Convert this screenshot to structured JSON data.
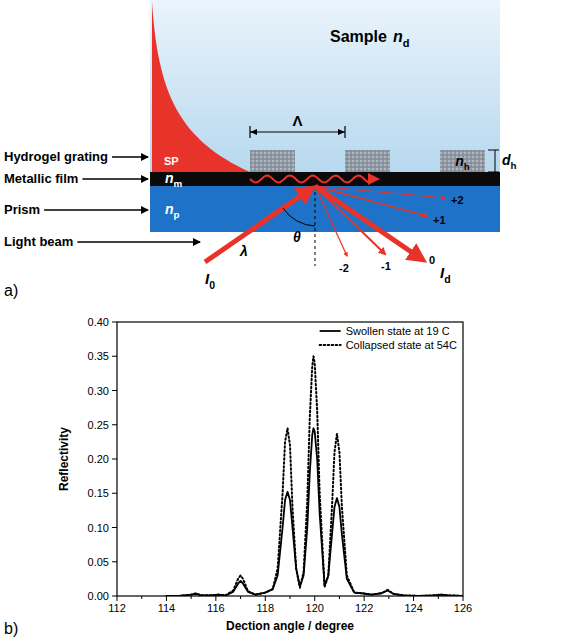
{
  "panel_labels": [
    "a)",
    "b)"
  ],
  "diagram": {
    "sample": {
      "text": "Sample",
      "symbol": "n",
      "sub": "d"
    },
    "layer_labels": [
      "Hydrogel grating",
      "Metallic film",
      "Prism",
      "Light beam"
    ],
    "surface_plasmon": "SP",
    "period": "Λ",
    "thickness": {
      "symbol": "d",
      "sub": "h"
    },
    "hydrogel_index": {
      "symbol": "n",
      "sub": "h"
    },
    "metal_index": {
      "symbol": "n",
      "sub": "m"
    },
    "prism_index": {
      "symbol": "n",
      "sub": "p"
    },
    "wavelength": "λ",
    "angle": "θ",
    "incident": {
      "symbol": "I",
      "sub": "0"
    },
    "diffracted": {
      "symbol": "I",
      "sub": "d"
    },
    "orders": [
      "+2",
      "+1",
      "0",
      "-1",
      "-2"
    ]
  },
  "chart_data": {
    "type": "line",
    "x_label": "Dection angle / degree",
    "y_label": "Reflectivity",
    "x": [
      114,
      114.5,
      115,
      115.2,
      115.4,
      115.8,
      116.1,
      116.4,
      116.7,
      116.9,
      117,
      117.1,
      117.3,
      117.6,
      118,
      118.3,
      118.5,
      118.7,
      118.8,
      118.9,
      119.0,
      119.1,
      119.25,
      119.4,
      119.55,
      119.7,
      119.8,
      119.9,
      119.95,
      120.0,
      120.1,
      120.2,
      120.4,
      120.55,
      120.7,
      120.8,
      120.9,
      121.0,
      121.1,
      121.3,
      121.6,
      121.9,
      122.3,
      122.7,
      122.95,
      123.2,
      123.6,
      124.2,
      124.8,
      125.1,
      125.4,
      126
    ],
    "series": [
      {
        "name": "Swollen state at 19 C",
        "color": "#000000",
        "line_style": "solid",
        "values": [
          0,
          0,
          0.002,
          0.003,
          0.001,
          0.001,
          0.002,
          0.001,
          0.006,
          0.018,
          0.022,
          0.018,
          0.006,
          0.002,
          0.005,
          0.01,
          0.03,
          0.1,
          0.14,
          0.152,
          0.14,
          0.1,
          0.04,
          0.014,
          0.03,
          0.1,
          0.18,
          0.235,
          0.245,
          0.24,
          0.2,
          0.12,
          0.015,
          0.03,
          0.09,
          0.13,
          0.143,
          0.13,
          0.09,
          0.025,
          0.005,
          0.004,
          0.002,
          0.004,
          0.008,
          0.003,
          0.001,
          0,
          0.001,
          0.002,
          0.001,
          0
        ]
      },
      {
        "name": "Collapsed state at 54C",
        "color": "#000000",
        "line_style": "dotted",
        "values": [
          0,
          0,
          0.002,
          0.004,
          0.001,
          0.001,
          0.002,
          0.001,
          0.008,
          0.025,
          0.03,
          0.025,
          0.007,
          0.002,
          0.005,
          0.01,
          0.04,
          0.15,
          0.225,
          0.245,
          0.22,
          0.13,
          0.04,
          0.012,
          0.035,
          0.14,
          0.26,
          0.335,
          0.35,
          0.34,
          0.27,
          0.15,
          0.013,
          0.03,
          0.13,
          0.21,
          0.237,
          0.21,
          0.13,
          0.03,
          0.005,
          0.004,
          0.002,
          0.004,
          0.009,
          0.003,
          0.001,
          0,
          0.001,
          0.002,
          0.001,
          0
        ]
      }
    ],
    "xlim": [
      112,
      126
    ],
    "xticks": [
      112,
      114,
      116,
      118,
      120,
      122,
      124,
      126
    ],
    "ylim": [
      0,
      0.4
    ],
    "yticks": [
      {
        "value": 0,
        "label": "0.00"
      },
      {
        "value": 0.05,
        "label": "0.05"
      },
      {
        "value": 0.1,
        "label": "0.10"
      },
      {
        "value": 0.15,
        "label": "0.15"
      },
      {
        "value": 0.2,
        "label": "0.20"
      },
      {
        "value": 0.25,
        "label": "0.25"
      },
      {
        "value": 0.3,
        "label": "0.30"
      },
      {
        "value": 0.35,
        "label": "0.35"
      },
      {
        "value": 0.4,
        "label": "0.40"
      }
    ],
    "legend": "top-right",
    "grid": false
  }
}
